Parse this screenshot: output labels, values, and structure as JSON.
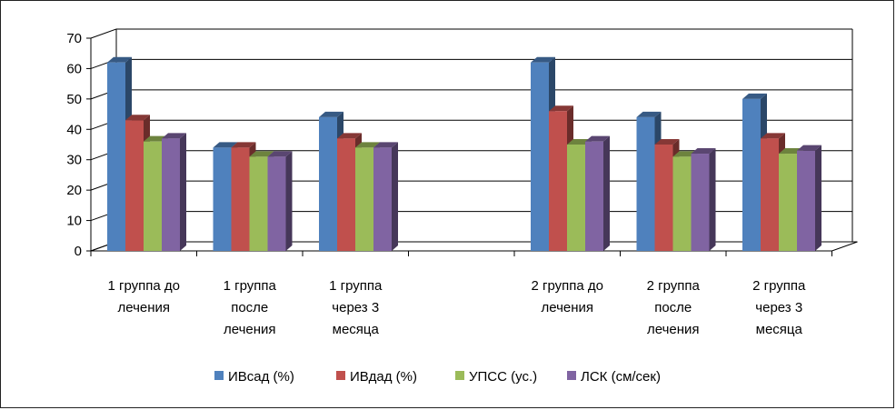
{
  "chart_data": {
    "type": "bar",
    "categories": [
      [
        "1 группа до",
        "лечения"
      ],
      [
        "1 группа",
        "после",
        "лечения"
      ],
      [
        "1 группа",
        "через 3",
        "месяца"
      ],
      [],
      [
        "2 группа до",
        "лечения"
      ],
      [
        "2 группа",
        "после",
        "лечения"
      ],
      [
        "2 группа",
        "через 3",
        "месяца"
      ]
    ],
    "series": [
      {
        "name": "ИВсад (%)",
        "color": "#4F81BD",
        "values": [
          62,
          34,
          44,
          null,
          62,
          44,
          50
        ]
      },
      {
        "name": "ИВдад (%)",
        "color": "#C0504D",
        "values": [
          43,
          34,
          37,
          null,
          46,
          35,
          37
        ]
      },
      {
        "name": "УПСС (ус.)",
        "color": "#9BBB59",
        "values": [
          36,
          31,
          34,
          null,
          35,
          31,
          32
        ]
      },
      {
        "name": "ЛСК (см/сек)",
        "color": "#8064A2",
        "values": [
          37,
          31,
          34,
          null,
          36,
          32,
          33
        ]
      }
    ],
    "yticks": [
      0,
      10,
      20,
      30,
      40,
      50,
      60,
      70
    ],
    "ylim": [
      0,
      70
    ],
    "grid": true,
    "legend": "bottom"
  }
}
